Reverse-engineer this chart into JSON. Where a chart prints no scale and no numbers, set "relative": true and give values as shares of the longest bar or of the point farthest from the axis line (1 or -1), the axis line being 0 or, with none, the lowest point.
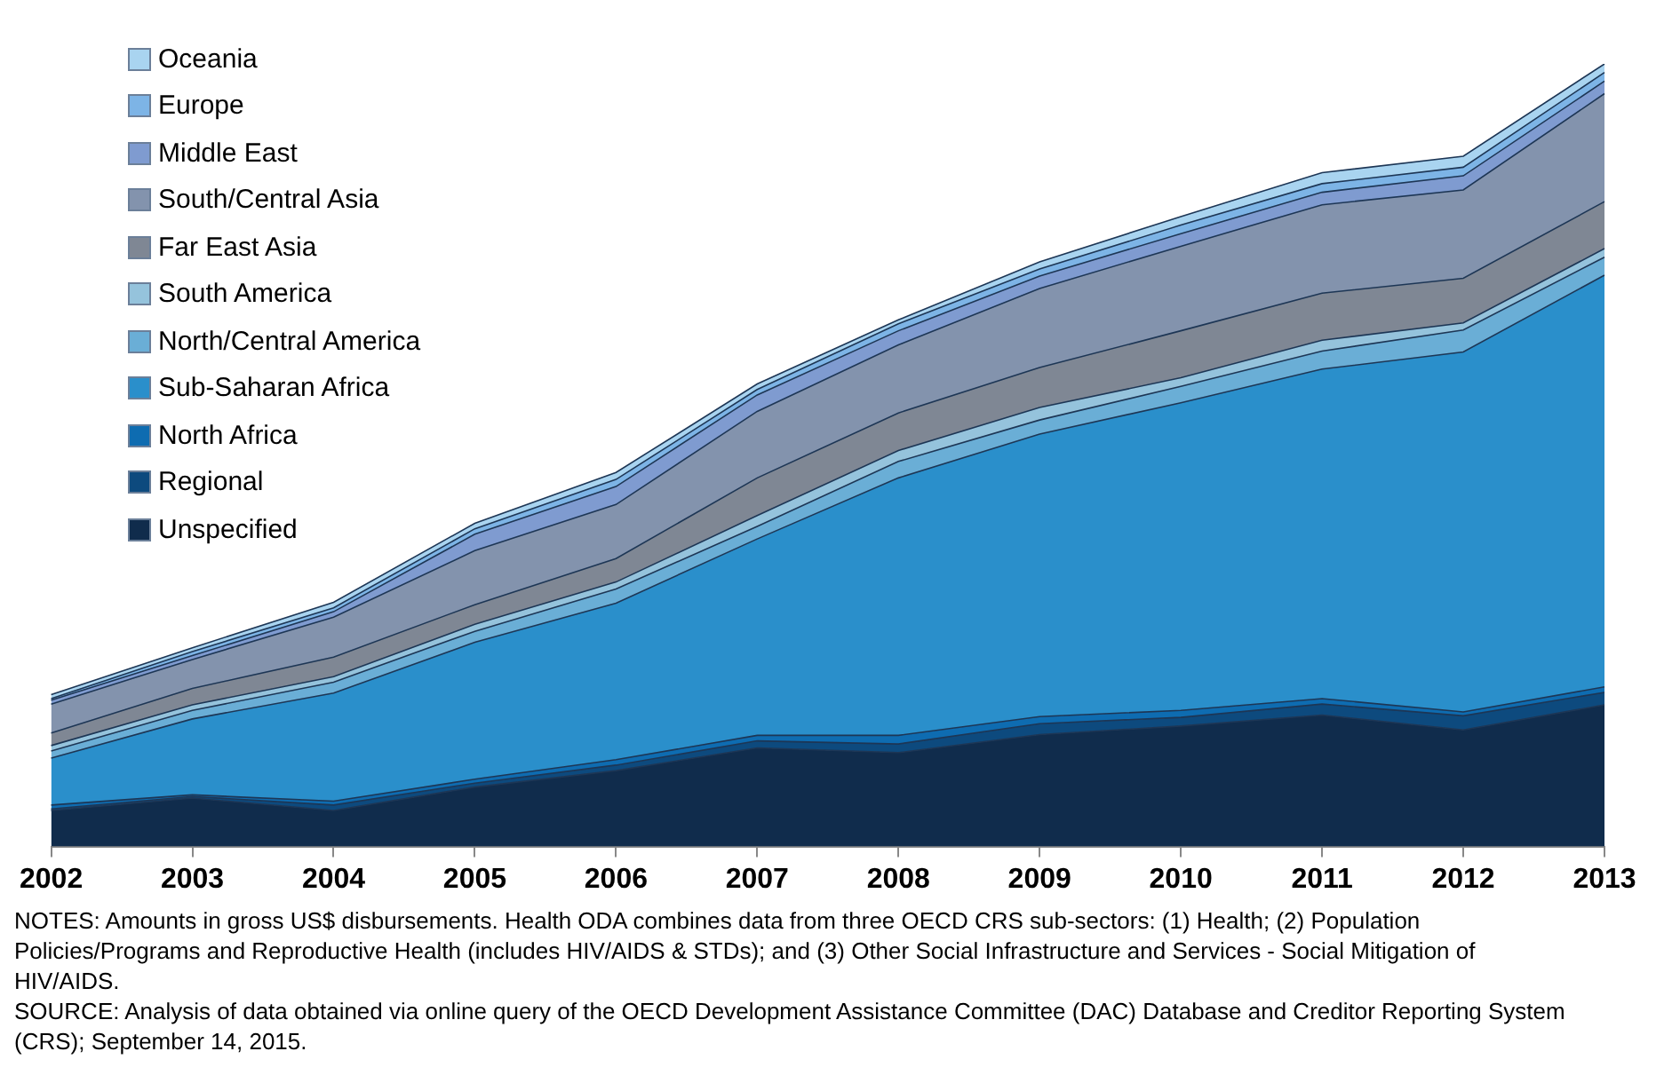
{
  "chart_data": {
    "type": "area",
    "stacked": true,
    "relative": true,
    "legend": "top left",
    "categories": [
      "2002",
      "2003",
      "2004",
      "2005",
      "2006",
      "2007",
      "2008",
      "2009",
      "2010",
      "2011",
      "2012",
      "2013"
    ],
    "series": [
      {
        "name": "Unspecified",
        "color": "#102c4c",
        "values": [
          0.046,
          0.062,
          0.046,
          0.076,
          0.097,
          0.126,
          0.12,
          0.143,
          0.154,
          0.168,
          0.149,
          0.181
        ]
      },
      {
        "name": "Regional",
        "color": "#0d4a7e",
        "values": [
          0.002,
          0.002,
          0.007,
          0.005,
          0.007,
          0.009,
          0.011,
          0.014,
          0.011,
          0.014,
          0.018,
          0.016
        ]
      },
      {
        "name": "North Africa",
        "color": "#0e6cb1",
        "values": [
          0.005,
          0.002,
          0.005,
          0.005,
          0.007,
          0.007,
          0.011,
          0.009,
          0.009,
          0.007,
          0.005,
          0.007
        ]
      },
      {
        "name": "Sub-Saharan Africa",
        "color": "#2a8fcb",
        "values": [
          0.06,
          0.097,
          0.138,
          0.175,
          0.2,
          0.251,
          0.329,
          0.361,
          0.393,
          0.421,
          0.46,
          0.526
        ]
      },
      {
        "name": "North/Central America",
        "color": "#6aaed6",
        "values": [
          0.009,
          0.011,
          0.014,
          0.014,
          0.018,
          0.016,
          0.021,
          0.018,
          0.021,
          0.023,
          0.028,
          0.023
        ]
      },
      {
        "name": "South America",
        "color": "#95c3dc",
        "values": [
          0.007,
          0.007,
          0.007,
          0.009,
          0.009,
          0.014,
          0.014,
          0.016,
          0.011,
          0.014,
          0.009,
          0.011
        ]
      },
      {
        "name": "Far East Asia",
        "color": "#7f8794",
        "values": [
          0.016,
          0.021,
          0.025,
          0.025,
          0.03,
          0.048,
          0.048,
          0.051,
          0.06,
          0.06,
          0.057,
          0.06
        ]
      },
      {
        "name": "South/Central Asia",
        "color": "#8393ad",
        "values": [
          0.037,
          0.037,
          0.051,
          0.069,
          0.069,
          0.085,
          0.087,
          0.101,
          0.108,
          0.113,
          0.113,
          0.138
        ]
      },
      {
        "name": "Middle East",
        "color": "#7f9bd0",
        "values": [
          0.005,
          0.005,
          0.007,
          0.021,
          0.023,
          0.021,
          0.018,
          0.016,
          0.016,
          0.016,
          0.018,
          0.016
        ]
      },
      {
        "name": "Europe",
        "color": "#7db4e6",
        "values": [
          0.002,
          0.005,
          0.005,
          0.007,
          0.009,
          0.007,
          0.009,
          0.009,
          0.011,
          0.011,
          0.011,
          0.011
        ]
      },
      {
        "name": "Oceania",
        "color": "#a9d4f0",
        "values": [
          0.005,
          0.005,
          0.007,
          0.007,
          0.009,
          0.007,
          0.005,
          0.009,
          0.011,
          0.014,
          0.014,
          0.011
        ]
      }
    ],
    "annotations": [
      "NOTES: Amounts in gross US$ disbursements. Health ODA combines data from three OECD CRS sub-sectors: (1) Health; (2) Population Policies/Programs and Reproductive Health (includes HIV/AIDS & STDs); and (3) Other Social Infrastructure and Services - Social Mitigation of HIV/AIDS.",
      "SOURCE: Analysis of data obtained via online query of the OECD Development Assistance Committee (DAC) Database and Creditor Reporting System (CRS); September 14, 2015."
    ]
  }
}
